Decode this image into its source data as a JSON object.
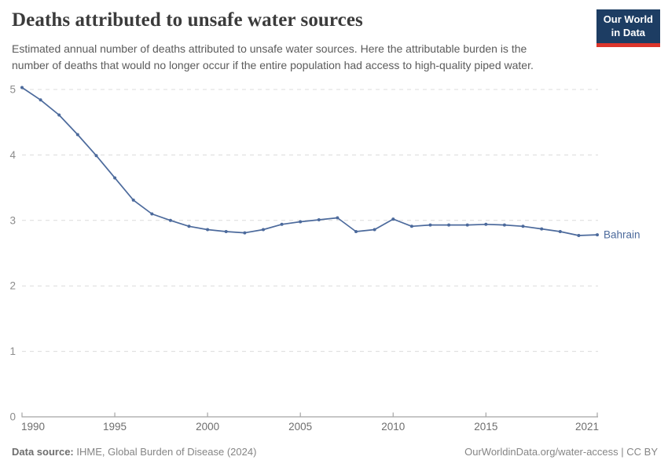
{
  "header": {
    "title": "Deaths attributed to unsafe water sources",
    "subtitle": "Estimated annual number of deaths attributed to unsafe water sources. Here the attributable burden is the number of deaths that would no longer occur if the entire population had access to high-quality piped water.",
    "logo_line1": "Our World",
    "logo_line2": "in Data"
  },
  "chart_data": {
    "type": "line",
    "title": "Deaths attributed to unsafe water sources",
    "x": [
      1990,
      1991,
      1992,
      1993,
      1994,
      1995,
      1996,
      1997,
      1998,
      1999,
      2000,
      2001,
      2002,
      2003,
      2004,
      2005,
      2006,
      2007,
      2008,
      2009,
      2010,
      2011,
      2012,
      2013,
      2014,
      2015,
      2016,
      2017,
      2018,
      2019,
      2020,
      2021
    ],
    "series": [
      {
        "name": "Bahrain",
        "color": "#4c6a9c",
        "values": [
          5.03,
          4.84,
          4.61,
          4.31,
          3.99,
          3.65,
          3.31,
          3.1,
          3.0,
          2.91,
          2.86,
          2.83,
          2.81,
          2.86,
          2.94,
          2.98,
          3.01,
          3.04,
          2.83,
          2.86,
          3.02,
          2.91,
          2.93,
          2.93,
          2.93,
          2.94,
          2.93,
          2.91,
          2.87,
          2.83,
          2.77,
          2.78
        ]
      }
    ],
    "x_ticks": [
      1990,
      1995,
      2000,
      2005,
      2010,
      2015,
      2021
    ],
    "y_ticks": [
      0,
      1,
      2,
      3,
      4,
      5
    ],
    "xlim": [
      1990,
      2021
    ],
    "ylim": [
      0,
      5
    ],
    "xlabel": "",
    "ylabel": "",
    "grid": "horizontal-dashed",
    "legend_position": "end-of-line"
  },
  "footer": {
    "source_label": "Data source:",
    "source_text": " IHME, Global Burden of Disease (2024)",
    "credit": "OurWorldinData.org/water-access | CC BY"
  },
  "colors": {
    "line": "#4c6a9c",
    "logo_navy": "#1d3d63",
    "logo_red": "#dc352b",
    "grid": "#dcdcdc",
    "axis": "#a5a5a5",
    "y_tick_label": "#8c8c8c",
    "x_tick_label": "#6e6e6e",
    "title": "#3b3b3b",
    "subtitle": "#5b5b5b",
    "footer": "#858585"
  }
}
